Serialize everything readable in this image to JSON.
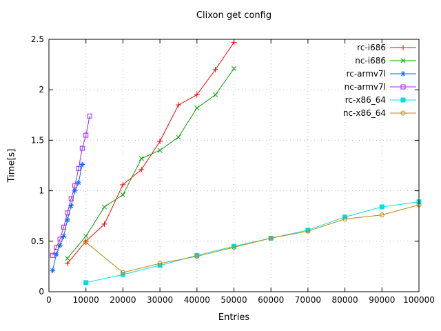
{
  "chart_data": {
    "type": "line",
    "title": "Clixon get config",
    "xlabel": "Entries",
    "ylabel": "Time[s]",
    "xlim": [
      0,
      100000
    ],
    "ylim": [
      0,
      2.5
    ],
    "xticks": [
      0,
      10000,
      20000,
      30000,
      40000,
      50000,
      60000,
      70000,
      80000,
      90000,
      100000
    ],
    "yticks": [
      0,
      0.5,
      1,
      1.5,
      2,
      2.5
    ],
    "grid": true,
    "legend_position": "top-right",
    "grid_color": "#b4b4b4",
    "axis_color": "#000000",
    "series": [
      {
        "name": "rc-i686",
        "color": "#ff0000",
        "marker": "plus",
        "points": [
          [
            5000,
            0.28
          ],
          [
            10000,
            0.5
          ],
          [
            15000,
            0.67
          ],
          [
            20000,
            1.06
          ],
          [
            25000,
            1.21
          ],
          [
            30000,
            1.49
          ],
          [
            35000,
            1.85
          ],
          [
            40000,
            1.95
          ],
          [
            45000,
            2.2
          ],
          [
            50000,
            2.47
          ]
        ]
      },
      {
        "name": "nc-i686",
        "color": "#00a000",
        "marker": "cross",
        "points": [
          [
            5000,
            0.33
          ],
          [
            10000,
            0.55
          ],
          [
            15000,
            0.84
          ],
          [
            20000,
            0.96
          ],
          [
            25000,
            1.32
          ],
          [
            30000,
            1.4
          ],
          [
            35000,
            1.53
          ],
          [
            40000,
            1.82
          ],
          [
            45000,
            1.95
          ],
          [
            50000,
            2.21
          ]
        ]
      },
      {
        "name": "rc-armv7l",
        "color": "#0066ff",
        "marker": "asterisk",
        "points": [
          [
            1000,
            0.21
          ],
          [
            2000,
            0.37
          ],
          [
            3000,
            0.46
          ],
          [
            4000,
            0.55
          ],
          [
            5000,
            0.71
          ],
          [
            6000,
            0.85
          ],
          [
            7000,
            1.0
          ],
          [
            8000,
            1.08
          ],
          [
            9000,
            1.26
          ]
        ]
      },
      {
        "name": "nc-armv7l",
        "color": "#a020f0",
        "marker": "square-open",
        "points": [
          [
            1000,
            0.36
          ],
          [
            2000,
            0.44
          ],
          [
            3000,
            0.52
          ],
          [
            4000,
            0.64
          ],
          [
            5000,
            0.78
          ],
          [
            6000,
            0.92
          ],
          [
            7000,
            1.05
          ],
          [
            8000,
            1.22
          ],
          [
            9000,
            1.42
          ],
          [
            10000,
            1.55
          ],
          [
            11000,
            1.74
          ]
        ]
      },
      {
        "name": "rc-x86_64",
        "color": "#00e0e0",
        "marker": "square-filled",
        "points": [
          [
            10000,
            0.09
          ],
          [
            20000,
            0.17
          ],
          [
            30000,
            0.26
          ],
          [
            40000,
            0.36
          ],
          [
            50000,
            0.45
          ],
          [
            60000,
            0.53
          ],
          [
            70000,
            0.61
          ],
          [
            80000,
            0.74
          ],
          [
            90000,
            0.84
          ],
          [
            100000,
            0.89
          ]
        ]
      },
      {
        "name": "nc-x86_64",
        "color": "#b8860b",
        "marker": "circle-open",
        "points": [
          [
            10000,
            0.49
          ],
          [
            20000,
            0.19
          ],
          [
            30000,
            0.28
          ],
          [
            40000,
            0.35
          ],
          [
            50000,
            0.44
          ],
          [
            60000,
            0.53
          ],
          [
            70000,
            0.6
          ],
          [
            80000,
            0.72
          ],
          [
            90000,
            0.76
          ],
          [
            100000,
            0.86
          ]
        ]
      }
    ]
  }
}
